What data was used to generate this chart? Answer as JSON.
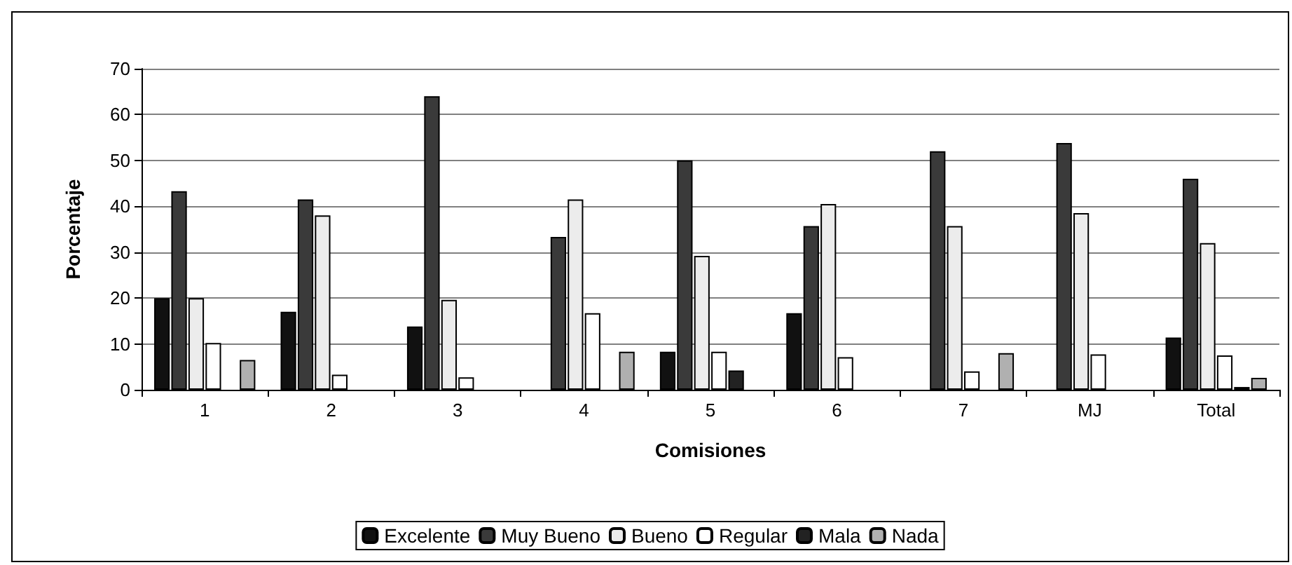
{
  "chart_data": {
    "type": "bar",
    "xlabel": "Comisiones",
    "ylabel": "Porcentaje",
    "categories": [
      "1",
      "2",
      "3",
      "4",
      "5",
      "6",
      "7",
      "MJ",
      "Total"
    ],
    "series": [
      {
        "name": "Excelente",
        "color": "#111111",
        "values": [
          20,
          17,
          13.8,
          null,
          8.3,
          16.7,
          null,
          null,
          11.4
        ]
      },
      {
        "name": "Muy Bueno",
        "color": "#3a3a3a",
        "values": [
          43.3,
          41.5,
          64,
          33.3,
          50,
          35.7,
          52,
          53.8,
          46
        ]
      },
      {
        "name": "Bueno",
        "color": "#ececec",
        "values": [
          20,
          38,
          19.6,
          41.5,
          29.2,
          40.5,
          35.7,
          38.5,
          32
        ]
      },
      {
        "name": "Regular",
        "color": "#ffffff",
        "values": [
          10.2,
          3.3,
          2.7,
          16.7,
          8.3,
          7.1,
          4,
          7.7,
          7.5
        ]
      },
      {
        "name": "Mala",
        "color": "#222222",
        "values": [
          null,
          null,
          null,
          null,
          4.2,
          null,
          null,
          null,
          0.6
        ]
      },
      {
        "name": "Nada",
        "color": "#b0b0b0",
        "values": [
          6.5,
          null,
          null,
          8.3,
          null,
          null,
          8,
          null,
          2.6
        ]
      }
    ],
    "ylim": [
      0,
      70
    ],
    "yticks": [
      0,
      10,
      20,
      30,
      40,
      50,
      60,
      70
    ],
    "grid": "y",
    "legend": "bottom"
  }
}
